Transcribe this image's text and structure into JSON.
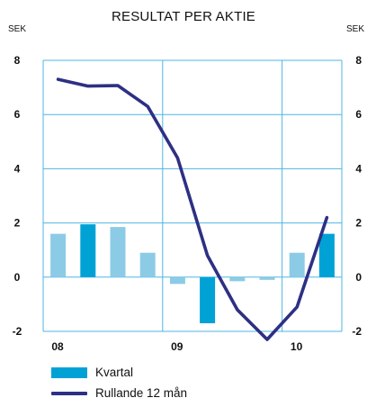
{
  "chart_data": {
    "type": "bar+line",
    "title": "RESULTAT PER AKTIE",
    "ylabel_left": "SEK",
    "ylabel_right": "SEK",
    "ylim": [
      -2,
      8
    ],
    "yticks": [
      -2,
      0,
      2,
      4,
      6,
      8
    ],
    "xtick_labels": [
      "08",
      "09",
      "10"
    ],
    "grid": true,
    "categories": [
      "08 Q1",
      "08 Q2",
      "08 Q3",
      "08 Q4",
      "09 Q1",
      "09 Q2",
      "09 Q3",
      "09 Q4",
      "10 Q1",
      "10 Q2"
    ],
    "series": [
      {
        "name": "Kvartal",
        "type": "bar",
        "values": [
          1.6,
          1.95,
          1.85,
          0.9,
          -0.25,
          -1.7,
          -0.15,
          -0.1,
          0.9,
          1.6
        ],
        "colors": [
          "#8ccbe6",
          "#00a2d6",
          "#8ccbe6",
          "#8ccbe6",
          "#8ccbe6",
          "#00a2d6",
          "#8ccbe6",
          "#8ccbe6",
          "#8ccbe6",
          "#00a2d6"
        ]
      },
      {
        "name": "Rullande 12 mån",
        "type": "line",
        "color": "#2d3083",
        "values": [
          7.3,
          7.05,
          7.07,
          6.3,
          4.4,
          0.8,
          -1.2,
          -2.3,
          -1.1,
          2.2
        ]
      }
    ],
    "legend_position": "bottom-left"
  },
  "colors": {
    "grid": "#4fb6e3",
    "bar_primary": "#00a2d6",
    "bar_light": "#8ccbe6",
    "line": "#2d3083"
  }
}
